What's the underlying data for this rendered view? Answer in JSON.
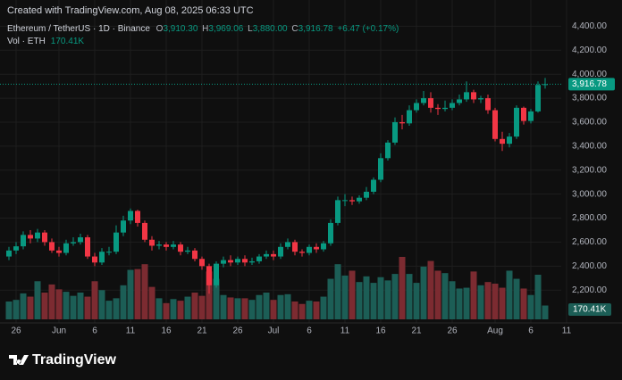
{
  "header": {
    "created": "Created with TradingView.com, Aug 08, 2025 06:33 UTC",
    "symbol": "Ethereum / TetherUS · 1D · Binance",
    "o_key": "O",
    "open": "3,910.30",
    "h_key": "H",
    "high": "3,969.06",
    "l_key": "L",
    "low": "3,880.00",
    "c_key": "C",
    "close": "3,916.78",
    "change": "+6.47 (+0.17%)",
    "vol_key": "Vol · ETH",
    "vol_value": "170.41K"
  },
  "chart_data": {
    "type": "candlestick",
    "up_color": "#089981",
    "down_color": "#f23645",
    "volume_up_color": "#1c5e56",
    "volume_down_color": "#7c2b31",
    "x": [
      "2025-05-25",
      "2025-05-26",
      "2025-05-27",
      "2025-05-28",
      "2025-05-29",
      "2025-05-30",
      "2025-05-31",
      "2025-06-01",
      "2025-06-02",
      "2025-06-03",
      "2025-06-04",
      "2025-06-05",
      "2025-06-06",
      "2025-06-07",
      "2025-06-08",
      "2025-06-09",
      "2025-06-10",
      "2025-06-11",
      "2025-06-12",
      "2025-06-13",
      "2025-06-14",
      "2025-06-15",
      "2025-06-16",
      "2025-06-17",
      "2025-06-18",
      "2025-06-19",
      "2025-06-20",
      "2025-06-21",
      "2025-06-22",
      "2025-06-23",
      "2025-06-24",
      "2025-06-25",
      "2025-06-26",
      "2025-06-27",
      "2025-06-28",
      "2025-06-29",
      "2025-06-30",
      "2025-07-01",
      "2025-07-02",
      "2025-07-03",
      "2025-07-04",
      "2025-07-05",
      "2025-07-06",
      "2025-07-07",
      "2025-07-08",
      "2025-07-09",
      "2025-07-10",
      "2025-07-11",
      "2025-07-12",
      "2025-07-13",
      "2025-07-14",
      "2025-07-15",
      "2025-07-16",
      "2025-07-17",
      "2025-07-18",
      "2025-07-19",
      "2025-07-20",
      "2025-07-21",
      "2025-07-22",
      "2025-07-23",
      "2025-07-24",
      "2025-07-25",
      "2025-07-26",
      "2025-07-27",
      "2025-07-28",
      "2025-07-29",
      "2025-07-30",
      "2025-07-31",
      "2025-08-01",
      "2025-08-02",
      "2025-08-03",
      "2025-08-04",
      "2025-08-05",
      "2025-08-06",
      "2025-08-07",
      "2025-08-08"
    ],
    "open": [
      2480,
      2530,
      2565,
      2660,
      2630,
      2680,
      2600,
      2530,
      2510,
      2590,
      2600,
      2640,
      2480,
      2430,
      2520,
      2520,
      2680,
      2780,
      2860,
      2760,
      2620,
      2570,
      2580,
      2560,
      2580,
      2520,
      2530,
      2460,
      2400,
      2240,
      2420,
      2450,
      2430,
      2460,
      2430,
      2440,
      2480,
      2500,
      2480,
      2560,
      2600,
      2520,
      2510,
      2560,
      2540,
      2590,
      2760,
      2950,
      2950,
      2940,
      2970,
      3020,
      3120,
      3300,
      3430,
      3600,
      3590,
      3700,
      3760,
      3800,
      3720,
      3710,
      3720,
      3760,
      3790,
      3850,
      3790,
      3800,
      3700,
      3460,
      3420,
      3480,
      3720,
      3610,
      3690,
      3910.3
    ],
    "high": [
      2560,
      2600,
      2690,
      2700,
      2710,
      2700,
      2630,
      2560,
      2620,
      2640,
      2670,
      2660,
      2510,
      2550,
      2560,
      2740,
      2820,
      2880,
      2870,
      2780,
      2650,
      2610,
      2600,
      2610,
      2600,
      2560,
      2550,
      2480,
      2420,
      2440,
      2480,
      2490,
      2480,
      2490,
      2470,
      2500,
      2530,
      2530,
      2590,
      2630,
      2620,
      2540,
      2580,
      2590,
      2610,
      2790,
      2980,
      3000,
      2980,
      2990,
      3060,
      3140,
      3340,
      3450,
      3640,
      3660,
      3740,
      3790,
      3860,
      3850,
      3750,
      3780,
      3790,
      3830,
      3940,
      3870,
      3820,
      3830,
      3720,
      3520,
      3510,
      3740,
      3730,
      3710,
      3940,
      3969.06
    ],
    "low": [
      2450,
      2500,
      2540,
      2590,
      2600,
      2570,
      2510,
      2480,
      2490,
      2570,
      2580,
      2460,
      2400,
      2410,
      2490,
      2500,
      2650,
      2750,
      2730,
      2600,
      2530,
      2540,
      2530,
      2540,
      2490,
      2500,
      2440,
      2370,
      2170,
      2220,
      2390,
      2400,
      2410,
      2400,
      2410,
      2420,
      2460,
      2450,
      2460,
      2540,
      2490,
      2480,
      2490,
      2510,
      2520,
      2570,
      2740,
      2900,
      2910,
      2920,
      2950,
      3000,
      3100,
      3280,
      3410,
      3540,
      3570,
      3680,
      3740,
      3680,
      3660,
      3690,
      3700,
      3740,
      3770,
      3760,
      3760,
      3670,
      3440,
      3360,
      3390,
      3460,
      3580,
      3590,
      3680,
      3880
    ],
    "close": [
      2530,
      2565,
      2660,
      2630,
      2680,
      2600,
      2530,
      2510,
      2590,
      2600,
      2640,
      2480,
      2430,
      2520,
      2520,
      2680,
      2780,
      2860,
      2760,
      2620,
      2570,
      2580,
      2560,
      2580,
      2520,
      2530,
      2460,
      2400,
      2240,
      2420,
      2450,
      2430,
      2460,
      2430,
      2440,
      2480,
      2500,
      2480,
      2560,
      2600,
      2520,
      2510,
      2560,
      2540,
      2590,
      2760,
      2950,
      2950,
      2940,
      2970,
      3020,
      3120,
      3300,
      3430,
      3600,
      3590,
      3700,
      3760,
      3800,
      3720,
      3710,
      3720,
      3760,
      3790,
      3850,
      3790,
      3800,
      3700,
      3460,
      3420,
      3480,
      3720,
      3610,
      3690,
      3910.3,
      3916.78
    ],
    "volume": [
      220000,
      240000,
      320000,
      280000,
      470000,
      330000,
      430000,
      370000,
      340000,
      290000,
      330000,
      280000,
      470000,
      360000,
      230000,
      260000,
      420000,
      610000,
      620000,
      680000,
      400000,
      260000,
      200000,
      250000,
      230000,
      280000,
      330000,
      290000,
      590000,
      500000,
      300000,
      270000,
      260000,
      260000,
      240000,
      300000,
      330000,
      240000,
      300000,
      310000,
      220000,
      190000,
      230000,
      220000,
      280000,
      500000,
      680000,
      540000,
      600000,
      460000,
      530000,
      450000,
      520000,
      480000,
      560000,
      770000,
      560000,
      450000,
      650000,
      720000,
      600000,
      570000,
      470000,
      380000,
      390000,
      590000,
      420000,
      460000,
      440000,
      390000,
      600000,
      500000,
      380000,
      300000,
      550000,
      170410
    ],
    "ylim": [
      2090,
      4470
    ],
    "yticks": [
      {
        "value": 4400,
        "label": "4,400.00"
      },
      {
        "value": 4200,
        "label": "4,200.00"
      },
      {
        "value": 4000,
        "label": "4,000.00"
      },
      {
        "value": 3800,
        "label": "3,800.00"
      },
      {
        "value": 3600,
        "label": "3,600.00"
      },
      {
        "value": 3400,
        "label": "3,400.00"
      },
      {
        "value": 3200,
        "label": "3,200.00"
      },
      {
        "value": 3000,
        "label": "3,000.00"
      },
      {
        "value": 2800,
        "label": "2,800.00"
      },
      {
        "value": 2600,
        "label": "2,600.00"
      },
      {
        "value": 2400,
        "label": "2,400.00"
      },
      {
        "value": 2200,
        "label": "2,200.00"
      }
    ],
    "xticks": [
      {
        "value": "2025-05-26",
        "label": "26"
      },
      {
        "value": "2025-06-01",
        "label": "Jun"
      },
      {
        "value": "2025-06-06",
        "label": "6"
      },
      {
        "value": "2025-06-11",
        "label": "11"
      },
      {
        "value": "2025-06-16",
        "label": "16"
      },
      {
        "value": "2025-06-21",
        "label": "21"
      },
      {
        "value": "2025-06-26",
        "label": "26"
      },
      {
        "value": "2025-07-01",
        "label": "Jul"
      },
      {
        "value": "2025-07-06",
        "label": "6"
      },
      {
        "value": "2025-07-11",
        "label": "11"
      },
      {
        "value": "2025-07-16",
        "label": "16"
      },
      {
        "value": "2025-07-21",
        "label": "21"
      },
      {
        "value": "2025-07-26",
        "label": "26"
      },
      {
        "value": "2025-08-01",
        "label": "Aug"
      },
      {
        "value": "2025-08-06",
        "label": "6"
      },
      {
        "value": "2025-08-11",
        "label": "11"
      }
    ],
    "grid": true
  },
  "footer": {
    "brand": "TradingView"
  }
}
